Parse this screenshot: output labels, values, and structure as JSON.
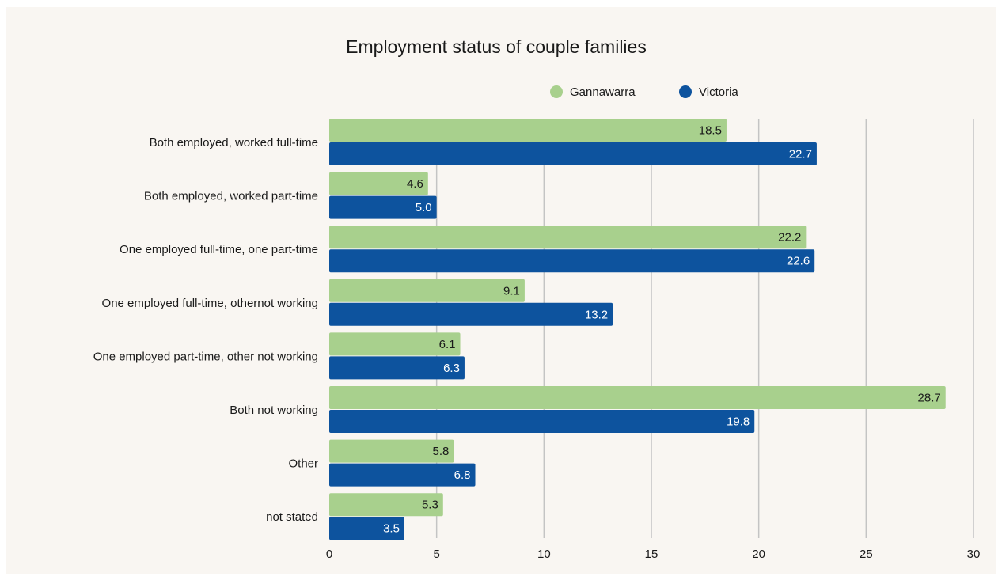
{
  "chart_data": {
    "type": "bar",
    "orientation": "horizontal",
    "title": "Employment status of couple families",
    "categories": [
      "Both employed, worked full-time",
      "Both employed, worked part-time",
      "One employed full-time, one part-time",
      "One employed full-time, othernot working",
      "One employed part-time, other not working",
      "Both not working",
      "Other",
      "not stated"
    ],
    "series": [
      {
        "name": "Gannawarra",
        "color": "#a8d08d",
        "label_color": "#1a1a1a",
        "values": [
          18.5,
          4.6,
          22.2,
          9.1,
          6.1,
          28.7,
          5.8,
          5.3
        ],
        "labels": [
          "18.5",
          "4.6",
          "22.2",
          "9.1",
          "6.1",
          "28.7",
          "5.8",
          "5.3"
        ]
      },
      {
        "name": "Victoria",
        "color": "#0d539e",
        "label_color": "#ffffff",
        "values": [
          22.7,
          5.0,
          22.6,
          13.2,
          6.3,
          19.8,
          6.8,
          3.5
        ],
        "labels": [
          "22.7",
          "5.0",
          "22.6",
          "13.2",
          "6.3",
          "19.8",
          "6.8",
          "3.5"
        ]
      }
    ],
    "xlim": [
      0,
      30
    ],
    "xticks": [
      0,
      5,
      10,
      15,
      20,
      25,
      30
    ],
    "xlabel": "",
    "ylabel": "",
    "grid": "vertical",
    "legend_position": "top-right",
    "background": "#f9f6f2",
    "grid_color": "#c4c4c4"
  }
}
